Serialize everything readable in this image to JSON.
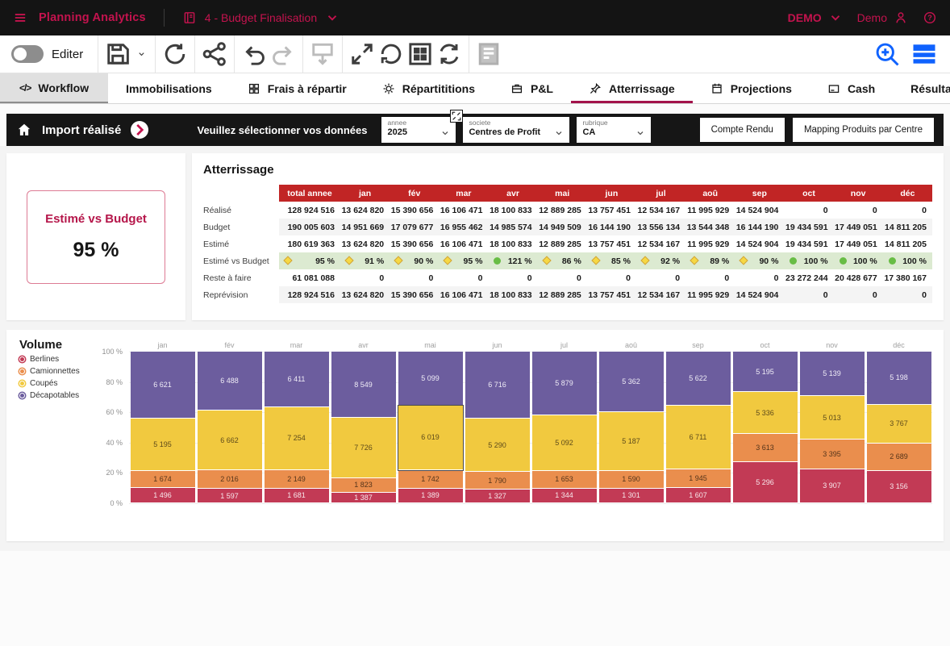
{
  "colors": {
    "brand": "#c4134e",
    "topbar_bg": "#141414",
    "accent_blue": "#0f62fe",
    "tab_underline": "#a2124a",
    "table_header_bg": "#c12525",
    "ratio_row_bg": "#dcead1",
    "status_ok_green": "#68bd45",
    "status_warn_yellow": "#f6d844"
  },
  "topbar": {
    "app_title": "Planning Analytics",
    "book_title": "4 - Budget Finalisation",
    "env_label": "DEMO",
    "user_name": "Demo"
  },
  "toolbar": {
    "edit_label": "Editer",
    "groups": [
      [
        {
          "name": "save",
          "disabled": false,
          "chevron": true
        }
      ],
      [
        {
          "name": "refresh",
          "disabled": false
        }
      ],
      [
        {
          "name": "share",
          "disabled": false
        }
      ],
      [
        {
          "name": "undo",
          "disabled": false
        },
        {
          "name": "redo",
          "disabled": true
        }
      ],
      [
        {
          "name": "commit",
          "disabled": true
        }
      ],
      [
        {
          "name": "maximize",
          "disabled": false
        },
        {
          "name": "reset",
          "disabled": false
        },
        {
          "name": "widget-grid",
          "disabled": false
        },
        {
          "name": "sync",
          "disabled": false
        }
      ],
      [
        {
          "name": "report",
          "disabled": false
        }
      ]
    ],
    "right_buttons": [
      {
        "name": "zoom-in"
      },
      {
        "name": "panel"
      }
    ]
  },
  "tabs": [
    {
      "label": "Workflow",
      "icon": "code",
      "style": "workflow",
      "active": false
    },
    {
      "label": "Immobilisations",
      "icon": null,
      "active": false
    },
    {
      "label": "Frais à répartir",
      "icon": "split-grid",
      "active": false
    },
    {
      "label": "Répartititions",
      "icon": "gear",
      "active": false
    },
    {
      "label": "P&L",
      "icon": "briefcase",
      "active": false
    },
    {
      "label": "Atterrissage",
      "icon": "pin",
      "active": true
    },
    {
      "label": "Projections",
      "icon": "calendar",
      "active": false
    },
    {
      "label": "Cash",
      "icon": "card",
      "active": false
    },
    {
      "label": "Résultat",
      "icon": null,
      "active": false
    }
  ],
  "alert_bar": {
    "title": "Import réalisé",
    "prompt": "Veuillez sélectionner vos données",
    "selectors": [
      {
        "label": "annee",
        "value": "2025",
        "has_expand_handle": true
      },
      {
        "label": "societe",
        "value": "Centres de Profit",
        "has_expand_handle": false
      },
      {
        "label": "rubrique",
        "value": "CA",
        "has_expand_handle": false
      }
    ],
    "buttons": [
      "Compte Rendu",
      "Mapping Produits par Centre"
    ]
  },
  "kpi": {
    "title": "Estimé vs Budget",
    "value": "95 %"
  },
  "table": {
    "title": "Atterrissage",
    "columns": [
      "total annee",
      "jan",
      "fév",
      "mar",
      "avr",
      "mai",
      "jun",
      "jul",
      "aoû",
      "sep",
      "oct",
      "nov",
      "déc"
    ],
    "rows": [
      {
        "label": "Réalisé",
        "type": "number",
        "values": [
          "128 924 516",
          "13 624 820",
          "15 390 656",
          "16 106 471",
          "18 100 833",
          "12 889 285",
          "13 757 451",
          "12 534 167",
          "11 995 929",
          "14 524 904",
          "0",
          "0",
          "0"
        ]
      },
      {
        "label": "Budget",
        "type": "number",
        "values": [
          "190 005 603",
          "14 951 669",
          "17 079 677",
          "16 955 462",
          "14 985 574",
          "14 949 509",
          "16 144 190",
          "13 556 134",
          "13 544 348",
          "16 144 190",
          "19 434 591",
          "17 449 051",
          "14 811 205"
        ]
      },
      {
        "label": "Estimé",
        "type": "number",
        "values": [
          "180 619 363",
          "13 624 820",
          "15 390 656",
          "16 106 471",
          "18 100 833",
          "12 889 285",
          "13 757 451",
          "12 534 167",
          "11 995 929",
          "14 524 904",
          "19 434 591",
          "17 449 051",
          "14 811 205"
        ]
      },
      {
        "label": "Estimé vs Budget",
        "type": "ratio",
        "values": [
          "95 %",
          "91 %",
          "90 %",
          "95 %",
          "121 %",
          "86 %",
          "85 %",
          "92 %",
          "89 %",
          "90 %",
          "100 %",
          "100 %",
          "100 %"
        ],
        "statuses": [
          "warn",
          "warn",
          "warn",
          "warn",
          "ok",
          "warn",
          "warn",
          "warn",
          "warn",
          "warn",
          "ok",
          "ok",
          "ok"
        ]
      },
      {
        "label": "Reste à faire",
        "type": "number",
        "values": [
          "61 081 088",
          "0",
          "0",
          "0",
          "0",
          "0",
          "0",
          "0",
          "0",
          "0",
          "23 272 244",
          "20 428 677",
          "17 380 167"
        ]
      },
      {
        "label": "Reprévision",
        "type": "number",
        "values": [
          "128 924 516",
          "13 624 820",
          "15 390 656",
          "16 106 471",
          "18 100 833",
          "12 889 285",
          "13 757 451",
          "12 534 167",
          "11 995 929",
          "14 524 904",
          "0",
          "0",
          "0"
        ]
      }
    ]
  },
  "chart": {
    "title": "Volume",
    "highlight": {
      "category": "mai",
      "series": "Coupés"
    }
  },
  "chart_data": {
    "type": "stacked-bar-100",
    "title": "Volume",
    "categories": [
      "jan",
      "fév",
      "mar",
      "avr",
      "mai",
      "jun",
      "jul",
      "aoû",
      "sep",
      "oct",
      "nov",
      "déc"
    ],
    "series": [
      {
        "name": "Berlines",
        "color": "#c23a55",
        "label_color": "#f7e8ec",
        "values": [
          1496,
          1597,
          1681,
          1387,
          1389,
          1327,
          1344,
          1301,
          1607,
          5296,
          3907,
          3156
        ]
      },
      {
        "name": "Camionnettes",
        "color": "#ea8e4d",
        "label_color": "#54341a",
        "values": [
          1674,
          2016,
          2149,
          1823,
          1742,
          1790,
          1653,
          1590,
          1945,
          3613,
          3395,
          2689
        ]
      },
      {
        "name": "Coupés",
        "color": "#f1c93f",
        "label_color": "#5d4a1b",
        "values": [
          5195,
          6662,
          7254,
          7726,
          6019,
          5290,
          5092,
          5187,
          6711,
          5336,
          5013,
          3767
        ]
      },
      {
        "name": "Décapotables",
        "color": "#6c5d9e",
        "label_color": "#efecf6",
        "values": [
          6621,
          6488,
          6411,
          8549,
          5099,
          6716,
          5879,
          5362,
          5622,
          5195,
          5139,
          5198
        ]
      }
    ],
    "stack_order_bottom_to_top": [
      "Berlines",
      "Camionnettes",
      "Coupés",
      "Décapotables"
    ],
    "y_ticks": [
      "100 %",
      "80 %",
      "60 %",
      "40 %",
      "20 %",
      "0 %"
    ],
    "ylim": [
      0,
      100
    ],
    "grid": true,
    "legend_position": "left"
  }
}
